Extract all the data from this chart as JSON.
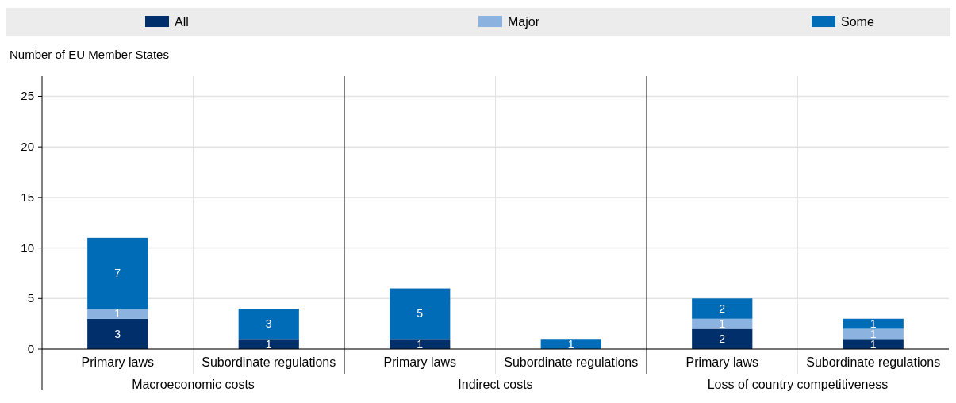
{
  "chart_data": {
    "type": "bar",
    "stacked": true,
    "ylabel": "Number of EU Member States",
    "categories": [
      "Primary laws",
      "Subordinate regulations",
      "Primary laws",
      "Subordinate regulations",
      "Primary laws",
      "Subordinate regulations"
    ],
    "series": [
      {
        "name": "All",
        "color": "#002f6c",
        "values": [
          3,
          1,
          1,
          0,
          2,
          1
        ],
        "value_labels": [
          "3",
          "1",
          "1",
          null,
          "2",
          "1"
        ]
      },
      {
        "name": "Major",
        "color": "#8cb3e0",
        "values": [
          1,
          0,
          0,
          0,
          1,
          1
        ],
        "value_labels": [
          "1",
          null,
          null,
          null,
          "1",
          "1"
        ]
      },
      {
        "name": "Some",
        "color": "#006bb6",
        "values": [
          7,
          3,
          5,
          1,
          2,
          1
        ],
        "value_labels": [
          "7",
          "3",
          "5",
          "1",
          "2",
          "1"
        ]
      }
    ],
    "annotations": [
      "Macroeconomic costs",
      "Indirect costs",
      "Loss of country competitiveness"
    ],
    "ylim": [
      0,
      27
    ],
    "yticks": [
      0,
      5,
      10,
      15,
      20,
      25
    ],
    "grid": "y",
    "legend": "top"
  }
}
